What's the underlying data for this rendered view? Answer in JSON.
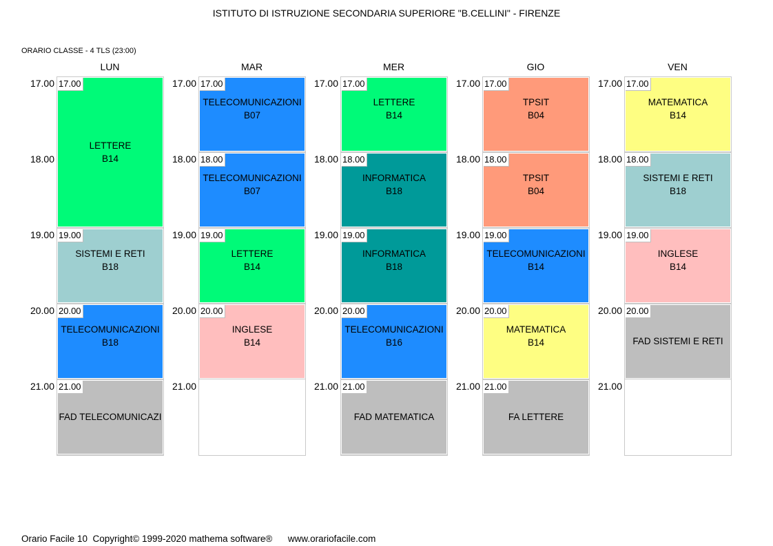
{
  "title": "ISTITUTO DI ISTRUZIONE SECONDARIA SUPERIORE \"B.CELLINI\" - FIRENZE",
  "class_line": "ORARIO CLASSE   -   4 TLS  (23:00)",
  "days": [
    "LUN",
    "MAR",
    "MER",
    "GIO",
    "VEN"
  ],
  "times": [
    "17.00",
    "18.00",
    "19.00",
    "20.00",
    "21.00"
  ],
  "colors": {
    "green": "#00fa78",
    "blue": "#1e8cff",
    "teal": "#009a99",
    "salmon": "#ff9a7a",
    "yellow": "#fefe82",
    "lightblue": "#9ecfd0",
    "pink": "#ffbebe",
    "gray": "#bebebe"
  },
  "schedule": [
    [
      {
        "slot": 0,
        "span": 2,
        "stamp": "17.00",
        "subject": "LETTERE",
        "room": "B14",
        "color": "green"
      },
      {
        "slot": 2,
        "span": 1,
        "stamp": "19.00",
        "subject": "SISTEMI E RETI",
        "room": "B18",
        "color": "lightblue"
      },
      {
        "slot": 3,
        "span": 1,
        "stamp": "20.00",
        "subject": "TELECOMUNICAZIONI",
        "room": "B18",
        "color": "blue"
      },
      {
        "slot": 4,
        "span": 1,
        "stamp": "21.00",
        "subject": "FAD TELECOMUNICAZI",
        "room": "",
        "color": "gray"
      }
    ],
    [
      {
        "slot": 0,
        "span": 1,
        "stamp": "17.00",
        "subject": "TELECOMUNICAZIONI",
        "room": "B07",
        "color": "blue"
      },
      {
        "slot": 1,
        "span": 1,
        "stamp": "18.00",
        "subject": "TELECOMUNICAZIONI",
        "room": "B07",
        "color": "blue"
      },
      {
        "slot": 2,
        "span": 1,
        "stamp": "19.00",
        "subject": "LETTERE",
        "room": "B14",
        "color": "green"
      },
      {
        "slot": 3,
        "span": 1,
        "stamp": "20.00",
        "subject": "INGLESE",
        "room": "B14",
        "color": "pink"
      }
    ],
    [
      {
        "slot": 0,
        "span": 1,
        "stamp": "17.00",
        "subject": "LETTERE",
        "room": "B14",
        "color": "green"
      },
      {
        "slot": 1,
        "span": 1,
        "stamp": "18.00",
        "subject": "INFORMATICA",
        "room": "B18",
        "color": "teal"
      },
      {
        "slot": 2,
        "span": 1,
        "stamp": "19.00",
        "subject": "INFORMATICA",
        "room": "B18",
        "color": "teal"
      },
      {
        "slot": 3,
        "span": 1,
        "stamp": "20.00",
        "subject": "TELECOMUNICAZIONI",
        "room": "B16",
        "color": "blue"
      },
      {
        "slot": 4,
        "span": 1,
        "stamp": "21.00",
        "subject": "FAD MATEMATICA",
        "room": "",
        "color": "gray"
      }
    ],
    [
      {
        "slot": 0,
        "span": 1,
        "stamp": "17.00",
        "subject": "TPSIT",
        "room": "B04",
        "color": "salmon"
      },
      {
        "slot": 1,
        "span": 1,
        "stamp": "18.00",
        "subject": "TPSIT",
        "room": "B04",
        "color": "salmon"
      },
      {
        "slot": 2,
        "span": 1,
        "stamp": "19.00",
        "subject": "TELECOMUNICAZIONI",
        "room": "B14",
        "color": "blue"
      },
      {
        "slot": 3,
        "span": 1,
        "stamp": "20.00",
        "subject": "MATEMATICA",
        "room": "B14",
        "color": "yellow"
      },
      {
        "slot": 4,
        "span": 1,
        "stamp": "21.00",
        "subject": "FA LETTERE",
        "room": "",
        "color": "gray"
      }
    ],
    [
      {
        "slot": 0,
        "span": 1,
        "stamp": "17.00",
        "subject": "MATEMATICA",
        "room": "B14",
        "color": "yellow"
      },
      {
        "slot": 1,
        "span": 1,
        "stamp": "18.00",
        "subject": "SISTEMI E RETI",
        "room": "B18",
        "color": "lightblue"
      },
      {
        "slot": 2,
        "span": 1,
        "stamp": "19.00",
        "subject": "INGLESE",
        "room": "B14",
        "color": "pink"
      },
      {
        "slot": 3,
        "span": 1,
        "stamp": "20.00",
        "subject": "FAD SISTEMI E RETI",
        "room": "",
        "color": "gray"
      }
    ]
  ],
  "footer": "Orario Facile 10  Copyright© 1999-2020 mathema software®      www.orariofacile.com"
}
